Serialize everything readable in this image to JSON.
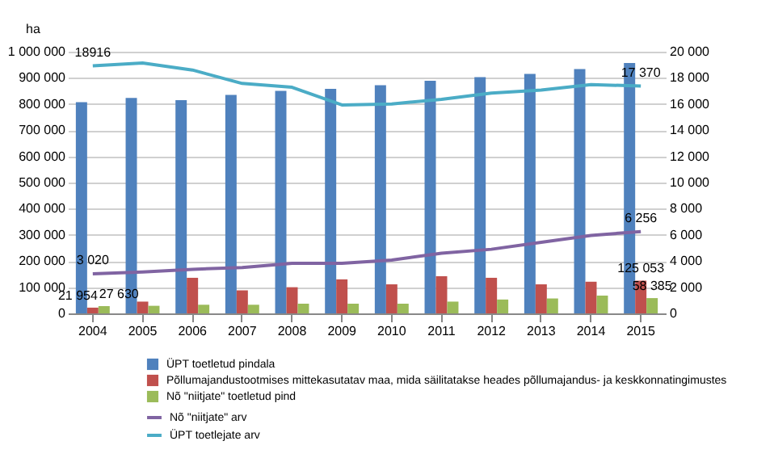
{
  "chart_data": {
    "type": "bar",
    "ylabel": "ha",
    "categories": [
      "2004",
      "2005",
      "2006",
      "2007",
      "2008",
      "2009",
      "2010",
      "2011",
      "2012",
      "2013",
      "2014",
      "2015"
    ],
    "series": [
      {
        "name": "ÜPT toetletud pindala",
        "color": "#4f81bd",
        "values": [
          807000,
          823000,
          815000,
          835000,
          850000,
          858000,
          872000,
          889000,
          903000,
          915000,
          934000,
          957000
        ]
      },
      {
        "name": "Põllumajandustootmises mittekasutatav maa, mida säilitatakse heades põllumajandus- ja keskkonnatingimustes",
        "color": "#c0504d",
        "values": [
          21954,
          45000,
          136000,
          88000,
          100000,
          130000,
          111000,
          142000,
          136000,
          111000,
          121000,
          125053
        ],
        "value_labels": [
          "21 954",
          null,
          null,
          null,
          null,
          null,
          null,
          null,
          null,
          null,
          null,
          "125 053"
        ]
      },
      {
        "name": "Nõ \"niitjate\" toetletud pind",
        "color": "#9bbb59",
        "values": [
          27630,
          29000,
          33000,
          33000,
          37000,
          37000,
          37000,
          45000,
          53000,
          57000,
          68000,
          58385
        ],
        "value_labels": [
          "27 630",
          null,
          null,
          null,
          null,
          null,
          null,
          null,
          null,
          null,
          null,
          "58 385"
        ]
      },
      {
        "name": "Nõ \"niitjate\" arv",
        "color": "#8064a2",
        "type": "line",
        "axis": "y2",
        "values": [
          3020,
          3170,
          3370,
          3500,
          3830,
          3830,
          4070,
          4600,
          4900,
          5430,
          5960,
          6256
        ],
        "value_labels": [
          "3 020",
          null,
          null,
          null,
          null,
          null,
          null,
          null,
          null,
          null,
          null,
          "6 256"
        ]
      },
      {
        "name": "ÜPT toetlejate arv",
        "color": "#4bacc6",
        "type": "line",
        "axis": "y2",
        "values": [
          18916,
          19140,
          18600,
          17570,
          17280,
          15930,
          16010,
          16360,
          16830,
          17070,
          17490,
          17370
        ],
        "value_labels": [
          "18916",
          null,
          null,
          null,
          null,
          null,
          null,
          null,
          null,
          null,
          null,
          "17 370"
        ]
      }
    ],
    "ylim": [
      0,
      1000000
    ],
    "yticks": [
      0,
      100000,
      200000,
      300000,
      400000,
      500000,
      600000,
      700000,
      800000,
      900000,
      1000000
    ],
    "y2lim": [
      0,
      20000
    ],
    "y2ticks": [
      0,
      2000,
      4000,
      6000,
      8000,
      10000,
      12000,
      14000,
      16000,
      18000,
      20000
    ],
    "grid": "y",
    "legend": "bottom",
    "marker": "none",
    "line_style": "solid"
  }
}
